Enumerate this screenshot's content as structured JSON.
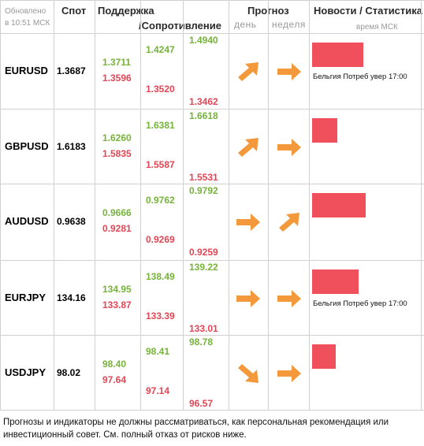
{
  "header": {
    "updated_line1": "Обновлено",
    "updated_line2": "в 10:51 МСК",
    "spot": "Спот",
    "support": "Поддержка",
    "resistance": "/Сопротивление",
    "forecast": "Прогноз",
    "day": "день",
    "week": "неделя",
    "news": "Новости / Статистика",
    "time_msk": "время МСК"
  },
  "rows": [
    {
      "symbol": "EURUSD",
      "spot": "1.3687",
      "s1": "1.3711",
      "s2": "1.3596",
      "r1": "1.4247",
      "r2": "1.3520",
      "r3": "1.4940",
      "r4": "1.3462",
      "day": "up-right",
      "week": "right",
      "bar": 0.85,
      "news": "Бельгия Потреб увер 17:00"
    },
    {
      "symbol": "GBPUSD",
      "spot": "1.6183",
      "s1": "1.6260",
      "s2": "1.5835",
      "r1": "1.6381",
      "r2": "1.5587",
      "r3": "1.6618",
      "r4": "1.5531",
      "day": "up-right",
      "week": "right",
      "bar": 0.42,
      "news": ""
    },
    {
      "symbol": "AUDUSD",
      "spot": "0.9638",
      "s1": "0.9666",
      "s2": "0.9281",
      "r1": "0.9762",
      "r2": "0.9269",
      "r3": "0.9792",
      "r4": "0.9259",
      "day": "right",
      "week": "up-right",
      "bar": 0.89,
      "news": ""
    },
    {
      "symbol": "EURJPY",
      "spot": "134.16",
      "s1": "134.95",
      "s2": "133.87",
      "r1": "138.49",
      "r2": "133.39",
      "r3": "139.22",
      "r4": "133.01",
      "day": "right",
      "week": "right",
      "bar": 0.77,
      "news": "Бельгия Потреб увер 17:00"
    },
    {
      "symbol": "USDJPY",
      "spot": "98.02",
      "s1": "98.40",
      "s2": "97.64",
      "r1": "98.41",
      "r2": "97.14",
      "r3": "98.78",
      "r4": "96.57",
      "day": "down-right",
      "week": "right",
      "bar": 0.4,
      "news": ""
    }
  ],
  "colors": {
    "support": "#76b33a",
    "resistance": "#e24654",
    "arrow": "#f4983c",
    "bar": "#f0505c"
  },
  "disclaimer": "Прогнозы и индикаторы не должны рассматриваться, как персональная рекомендация или инвестиционный совет. См. полный отказ от рисков ниже."
}
